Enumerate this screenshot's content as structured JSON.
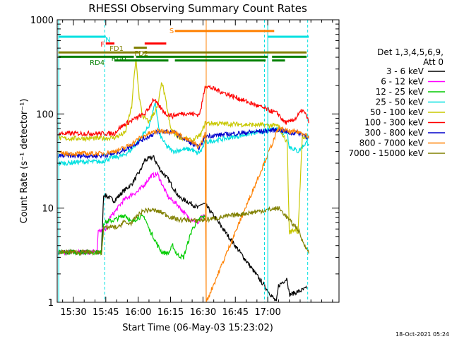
{
  "chart_data": {
    "type": "line",
    "title": "RHESSI Observing Summary Count Rates",
    "xlabel": "Start Time (06-May-03 15:23:02)",
    "ylabel": "Count Rate (s⁻¹ detector⁻¹)",
    "yscale": "log",
    "ylim": [
      1,
      1000
    ],
    "xlim_minutes": [
      -0.5,
      130
    ],
    "x_tick_labels": [
      "15:30",
      "15:45",
      "16:00",
      "16:15",
      "16:30",
      "16:45",
      "17:00"
    ],
    "x_tick_minutes": [
      7,
      22,
      37,
      52,
      67,
      82,
      97
    ],
    "y_tick_labels": [
      "1",
      "10",
      "100",
      "1000"
    ],
    "y_tick_values": [
      1,
      10,
      100,
      1000
    ],
    "legend_header": [
      "Det 1,3,4,5,6,9,",
      "Att 0"
    ],
    "legend_location": "right",
    "footer_date": "18-Oct-2021 05:24",
    "series": [
      {
        "name": "3 - 6 keV",
        "color": "#000000",
        "points": [
          [
            0,
            3.4
          ],
          [
            14,
            3.4
          ],
          [
            20,
            3.4
          ],
          [
            21,
            14
          ],
          [
            26,
            12
          ],
          [
            30,
            15
          ],
          [
            34,
            18
          ],
          [
            38,
            25
          ],
          [
            40,
            32
          ],
          [
            44,
            35
          ],
          [
            47,
            26
          ],
          [
            51,
            20
          ],
          [
            56,
            13
          ],
          [
            62,
            11
          ],
          [
            65,
            10
          ],
          [
            66,
            11
          ],
          [
            68,
            11
          ],
          [
            101,
            1
          ],
          [
            102,
            1.5
          ],
          [
            106,
            1.8
          ],
          [
            107,
            1.2
          ],
          [
            115,
            1.4
          ]
        ]
      },
      {
        "name": "6 - 12 keV",
        "color": "#ff00ff",
        "points": [
          [
            0,
            3.4
          ],
          [
            14,
            3.4
          ],
          [
            18,
            3.6
          ],
          [
            18.5,
            5.6
          ],
          [
            22,
            6.1
          ],
          [
            24,
            8
          ],
          [
            26,
            9
          ],
          [
            30,
            12
          ],
          [
            34,
            14
          ],
          [
            37,
            15
          ],
          [
            40,
            18
          ],
          [
            43,
            22
          ],
          [
            46,
            23
          ],
          [
            49,
            16
          ],
          [
            51,
            13
          ],
          [
            55,
            11
          ],
          [
            60,
            8
          ],
          [
            65,
            7
          ],
          [
            66,
            8
          ],
          [
            68,
            8
          ]
        ]
      },
      {
        "name": "12 - 25 keV",
        "color": "#00cc00",
        "points": [
          [
            0,
            3.4
          ],
          [
            14,
            3.4
          ],
          [
            20,
            3.4
          ],
          [
            21,
            7
          ],
          [
            26,
            7.5
          ],
          [
            31,
            8.5
          ],
          [
            34,
            7
          ],
          [
            37,
            8
          ],
          [
            40,
            8
          ],
          [
            42,
            6
          ],
          [
            44,
            5
          ],
          [
            46,
            4
          ],
          [
            48,
            3.4
          ],
          [
            51,
            3.3
          ],
          [
            53,
            4
          ],
          [
            55,
            3.2
          ],
          [
            58,
            3
          ],
          [
            62,
            6
          ],
          [
            66,
            8
          ],
          [
            68,
            8
          ]
        ]
      },
      {
        "name": "25 - 50 keV",
        "color": "#00e0e0",
        "points": [
          [
            0,
            30
          ],
          [
            3,
            30
          ],
          [
            10,
            31
          ],
          [
            20,
            31
          ],
          [
            24,
            34
          ],
          [
            30,
            36
          ],
          [
            34,
            42
          ],
          [
            38,
            55
          ],
          [
            42,
            75
          ],
          [
            45,
            130
          ],
          [
            47,
            60
          ],
          [
            50,
            46
          ],
          [
            53,
            40
          ],
          [
            58,
            42
          ],
          [
            62,
            42
          ],
          [
            64,
            38
          ],
          [
            66,
            40
          ],
          [
            68,
            50
          ],
          [
            102,
            70
          ],
          [
            104,
            62
          ],
          [
            106,
            64
          ],
          [
            107,
            45
          ],
          [
            111,
            40
          ],
          [
            115,
            50
          ],
          [
            116,
            48
          ]
        ]
      },
      {
        "name": "50 - 100 keV",
        "color": "#c8c800",
        "points": [
          [
            0,
            55
          ],
          [
            10,
            55
          ],
          [
            20,
            55
          ],
          [
            26,
            56
          ],
          [
            31,
            63
          ],
          [
            34,
            120
          ],
          [
            35,
            230
          ],
          [
            36,
            380
          ],
          [
            37.5,
            150
          ],
          [
            39,
            95
          ],
          [
            42,
            82
          ],
          [
            46,
            120
          ],
          [
            48,
            220
          ],
          [
            50,
            130
          ],
          [
            52,
            70
          ],
          [
            55,
            58
          ],
          [
            58,
            55
          ],
          [
            62,
            52
          ],
          [
            66,
            60
          ],
          [
            68,
            80
          ],
          [
            102,
            75
          ],
          [
            104,
            60
          ],
          [
            106,
            50
          ],
          [
            107,
            5.5
          ],
          [
            110,
            6
          ],
          [
            111,
            5.5
          ],
          [
            113,
            55
          ],
          [
            115,
            58
          ],
          [
            116,
            55
          ]
        ]
      },
      {
        "name": "100 - 300 keV",
        "color": "#ff0000",
        "points": [
          [
            0,
            62
          ],
          [
            10,
            62
          ],
          [
            20,
            62
          ],
          [
            26,
            62
          ],
          [
            28,
            70
          ],
          [
            31,
            78
          ],
          [
            34,
            85
          ],
          [
            38,
            95
          ],
          [
            40,
            100
          ],
          [
            42,
            115
          ],
          [
            44,
            145
          ],
          [
            46,
            125
          ],
          [
            50,
            100
          ],
          [
            53,
            95
          ],
          [
            56,
            100
          ],
          [
            59,
            102
          ],
          [
            62,
            100
          ],
          [
            65,
            98
          ],
          [
            66,
            110
          ],
          [
            68,
            200
          ],
          [
            102,
            100
          ],
          [
            104,
            85
          ],
          [
            106,
            80
          ],
          [
            110,
            90
          ],
          [
            113,
            110
          ],
          [
            115,
            95
          ],
          [
            116,
            80
          ]
        ]
      },
      {
        "name": "300 - 800 keV",
        "color": "#0000cc",
        "points": [
          [
            0,
            36
          ],
          [
            10,
            36
          ],
          [
            20,
            36
          ],
          [
            26,
            38
          ],
          [
            31,
            42
          ],
          [
            35,
            47
          ],
          [
            38,
            52
          ],
          [
            42,
            58
          ],
          [
            46,
            64
          ],
          [
            50,
            65
          ],
          [
            54,
            63
          ],
          [
            58,
            55
          ],
          [
            62,
            48
          ],
          [
            65,
            44
          ],
          [
            66,
            46
          ],
          [
            68,
            58
          ],
          [
            102,
            68
          ],
          [
            104,
            66
          ],
          [
            108,
            62
          ],
          [
            110,
            64
          ],
          [
            114,
            60
          ],
          [
            116,
            55
          ]
        ]
      },
      {
        "name": "800 - 7000 keV",
        "color": "#ff8000",
        "points": [
          [
            0,
            38
          ],
          [
            10,
            38
          ],
          [
            20,
            38
          ],
          [
            26,
            40
          ],
          [
            31,
            44
          ],
          [
            35,
            50
          ],
          [
            38,
            56
          ],
          [
            42,
            62
          ],
          [
            46,
            66
          ],
          [
            50,
            66
          ],
          [
            54,
            64
          ],
          [
            58,
            56
          ],
          [
            62,
            50
          ],
          [
            65,
            45
          ],
          [
            66,
            48
          ],
          [
            68,
            62
          ],
          [
            68.5,
            1
          ],
          [
            102,
            70
          ],
          [
            104,
            68
          ],
          [
            108,
            64
          ],
          [
            110,
            65
          ],
          [
            114,
            62
          ],
          [
            116,
            58
          ]
        ]
      },
      {
        "name": "7000 - 15000 keV",
        "color": "#808000",
        "points": [
          [
            0,
            3.4
          ],
          [
            14,
            3.4
          ],
          [
            20,
            3.4
          ],
          [
            21,
            6
          ],
          [
            24,
            6.3
          ],
          [
            28,
            6.2
          ],
          [
            30,
            7.2
          ],
          [
            32,
            6.8
          ],
          [
            34,
            7
          ],
          [
            37,
            8.5
          ],
          [
            40,
            9.5
          ],
          [
            44,
            9.5
          ],
          [
            48,
            9
          ],
          [
            52,
            8
          ],
          [
            56,
            7.5
          ],
          [
            60,
            7.5
          ],
          [
            64,
            7.3
          ],
          [
            66,
            7.5
          ],
          [
            68,
            7.5
          ],
          [
            102,
            10
          ],
          [
            104,
            9
          ],
          [
            108,
            7
          ],
          [
            111,
            6
          ],
          [
            113,
            4.5
          ],
          [
            115,
            3.8
          ],
          [
            116,
            3.3
          ]
        ]
      }
    ],
    "state_bars": [
      {
        "label": "N",
        "color": "#00e0e0",
        "y": 660,
        "segments": [
          [
            0,
            22
          ]
        ],
        "label_at_minute": 23,
        "label_y": 620
      },
      {
        "label": "",
        "color": "#00e0e0",
        "y": 660,
        "segments": [
          [
            97,
            116
          ]
        ]
      },
      {
        "label": "F",
        "color": "#ff0000",
        "y": 560,
        "segments": [
          [
            22,
            26
          ]
        ],
        "label_at_minute": 20.5,
        "label_y": 555
      },
      {
        "label": "",
        "color": "#ff0000",
        "y": 560,
        "segments": [
          [
            40,
            50
          ]
        ]
      },
      {
        "label": "FD1",
        "color": "#808000",
        "y": 505,
        "segments": [
          [
            35,
            41
          ]
        ],
        "label_at_minute": 27,
        "label_y": 500
      },
      {
        "label": "FD2",
        "color": "#808000",
        "y": 450,
        "segments": [
          [
            0,
            38
          ],
          [
            39,
            115
          ]
        ],
        "label_at_minute": 38.5,
        "label_y": 445
      },
      {
        "label": "RD0",
        "color": "#008000",
        "y": 405,
        "segments": [
          [
            0,
            35
          ],
          [
            36,
            97
          ]
        ],
        "label_at_minute": 28,
        "label_y": 395
      },
      {
        "label": "",
        "color": "#008000",
        "y": 405,
        "segments": [
          [
            99,
            115
          ]
        ]
      },
      {
        "label": "RD4",
        "color": "#008000",
        "y": 370,
        "segments": [
          [
            26,
            51
          ],
          [
            54,
            96
          ],
          [
            99,
            105
          ]
        ],
        "label_at_minute": 18,
        "label_y": 355
      },
      {
        "label": "S",
        "color": "#ff8000",
        "y": 760,
        "segments": [
          [
            54,
            100
          ]
        ],
        "label_at_minute": 52.5,
        "label_y": 770
      }
    ],
    "markers": [
      {
        "minute": 21.5,
        "color": "#00e0e0",
        "style": "dashed"
      },
      {
        "minute": 95.5,
        "color": "#00e0e0",
        "style": "dashed"
      },
      {
        "minute": 115.5,
        "color": "#00e0e0",
        "style": "dashed"
      },
      {
        "minute": 0.2,
        "color": "#00e0e0",
        "style": "solid"
      },
      {
        "minute": 97,
        "color": "#00e0e0",
        "style": "solid"
      },
      {
        "minute": 68.5,
        "color": "#ff8000",
        "style": "solid"
      }
    ]
  }
}
